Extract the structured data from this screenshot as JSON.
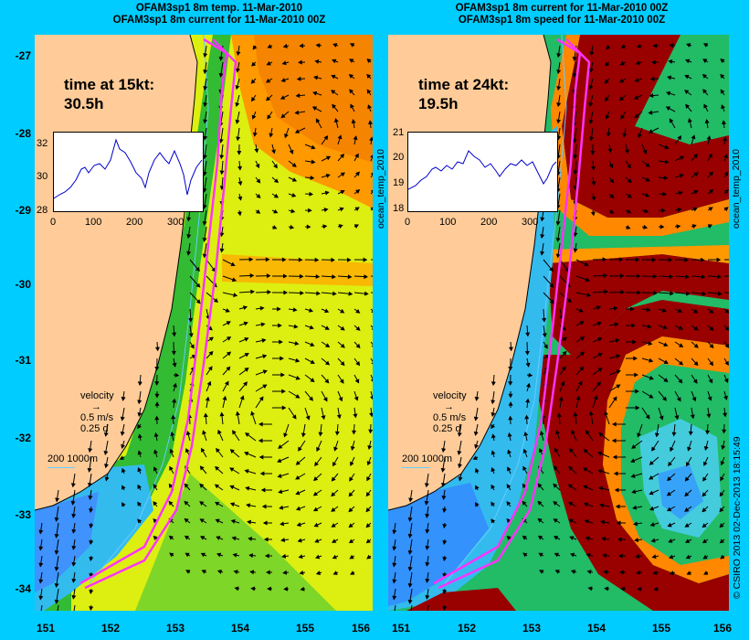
{
  "titles": {
    "left_line1": "OFAM3sp1 8m temp. 11-Mar-2010",
    "left_line2": "OFAM3sp1 8m current for 11-Mar-2010 00Z",
    "right_line1": "OFAM3sp1 8m current for 11-Mar-2010 00Z",
    "right_line2": "OFAM3sp1 8m speed for 11-Mar-2010 00Z"
  },
  "axes": {
    "lat_ticks": [
      "-27",
      "-28",
      "-29",
      "-30",
      "-31",
      "-32",
      "-33",
      "-34"
    ],
    "lon_ticks": [
      "151",
      "152",
      "153",
      "154",
      "155",
      "156"
    ]
  },
  "left_panel": {
    "time_label": "time at 15kt:",
    "time_value": "30.5h",
    "inset_yticks": [
      "32",
      "30",
      "28"
    ],
    "inset_xticks": [
      "0",
      "100",
      "200",
      "300"
    ],
    "velocity_label": "velocity",
    "velocity_speed": "0.5 m/s",
    "velocity_time": "0.25 d",
    "depth_label": "200  1000m",
    "side_label": "ocean_temp_2010"
  },
  "right_panel": {
    "time_label": "time at 24kt:",
    "time_value": "19.5h",
    "inset_yticks": [
      "21",
      "20",
      "19",
      "18"
    ],
    "inset_xticks": [
      "0",
      "100",
      "200",
      "300"
    ],
    "velocity_label": "velocity",
    "velocity_speed": "0.5 m/s",
    "velocity_time": "0.25 d",
    "depth_label": "200  1000m",
    "side_label": "ocean_temp_2010"
  },
  "credit": "© CSIRO 2013   02-Dec-2013 18:15:49",
  "colors": {
    "frame": "#00ccff",
    "land": "#ffcc99",
    "route": "#ff33ff",
    "warm_red": "#990000",
    "orange": "#ff8800",
    "yellow": "#ffee00",
    "green": "#33cc33",
    "cyan": "#33ccee",
    "blue": "#3388ff"
  }
}
